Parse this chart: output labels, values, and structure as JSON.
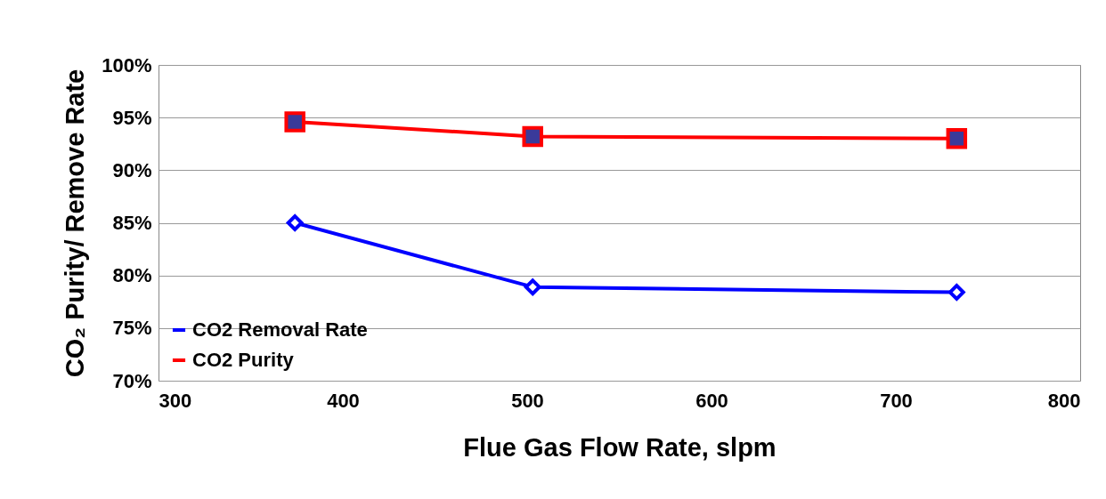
{
  "chart_data": {
    "type": "line",
    "xlabel": "Flue Gas Flow Rate, slpm",
    "ylabel": "CO₂ Purity/ Remove Rate",
    "x": [
      374,
      503,
      733
    ],
    "series": [
      {
        "name": "CO2 Removal Rate",
        "color": "#0000ff",
        "values": [
          85.0,
          78.9,
          78.4
        ],
        "marker": "diamond"
      },
      {
        "name": "CO2 Purity",
        "color": "#ff0000",
        "values": [
          94.6,
          93.2,
          93.0
        ],
        "marker": "square"
      }
    ],
    "xlim": [
      300,
      800
    ],
    "xticks": [
      300,
      400,
      500,
      600,
      700,
      800
    ],
    "ylim": [
      70,
      100
    ],
    "yticks": [
      {
        "value": 70,
        "label": "70%"
      },
      {
        "value": 75,
        "label": "75%"
      },
      {
        "value": 80,
        "label": "80%"
      },
      {
        "value": 85,
        "label": "85%"
      },
      {
        "value": 90,
        "label": "90%"
      },
      {
        "value": 95,
        "label": "95%"
      },
      {
        "value": 100,
        "label": "100%"
      }
    ],
    "grid": "y",
    "legend": "bottom left"
  }
}
